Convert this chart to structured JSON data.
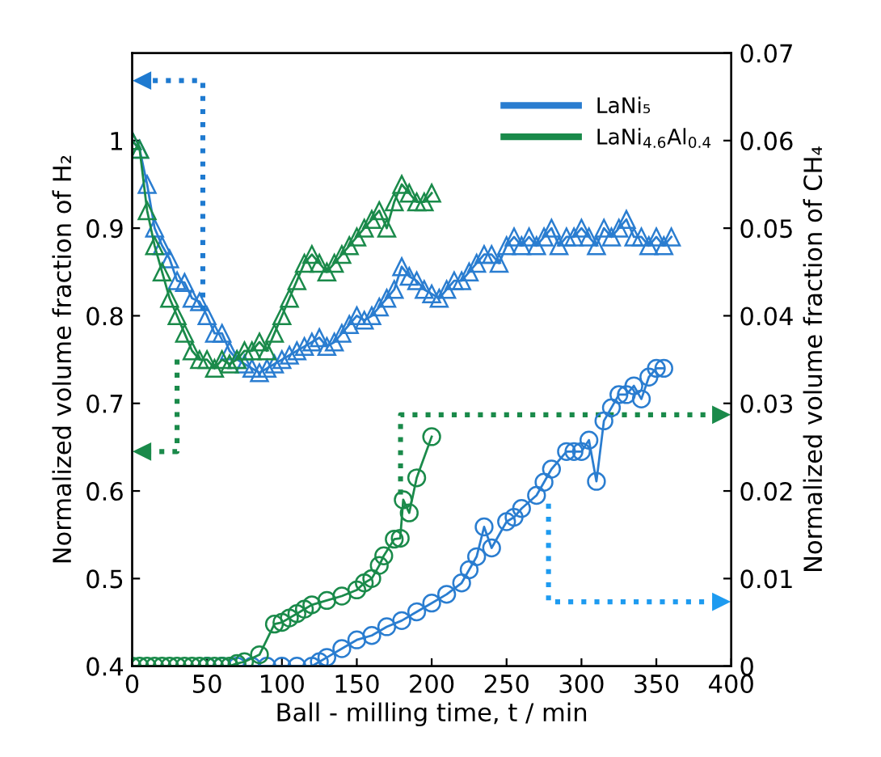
{
  "chart_data": {
    "type": "line",
    "xlabel": "Ball - milling time, t / min",
    "ylabel": "Normalized volume fraction of H₂",
    "y2label": "Normalized volume fraction of CH₄",
    "xlim": [
      0,
      400
    ],
    "xticks": [
      0,
      50,
      100,
      150,
      200,
      250,
      300,
      350,
      400
    ],
    "ylim": [
      0.4,
      1.1
    ],
    "yticks": [
      0.4,
      0.5,
      0.6,
      0.7,
      0.8,
      0.9,
      1
    ],
    "y2lim": [
      0,
      0.07
    ],
    "y2ticks": [
      0,
      0.01,
      0.02,
      0.03,
      0.04,
      0.05,
      0.06,
      0.07
    ],
    "grid": false,
    "legend": "top right",
    "line_style": "solid",
    "series": [
      {
        "name": "LaNi₅",
        "color": "#2a7dd0",
        "marker": "triangle",
        "x": [
          0,
          5,
          10,
          15,
          20,
          25,
          30,
          35,
          40,
          45,
          50,
          55,
          60,
          65,
          70,
          75,
          80,
          85,
          90,
          95,
          100,
          105,
          110,
          115,
          120,
          125,
          130,
          135,
          140,
          145,
          150,
          155,
          160,
          165,
          170,
          175,
          180,
          185,
          190,
          195,
          200,
          205,
          210,
          215,
          220,
          225,
          230,
          235,
          240,
          245,
          250,
          255,
          260,
          265,
          270,
          275,
          280,
          285,
          290,
          295,
          300,
          305,
          310,
          315,
          320,
          325,
          330,
          335,
          340,
          345,
          350,
          355,
          360
        ],
        "values": [
          1.0,
          0.99,
          0.95,
          0.9,
          0.88,
          0.865,
          0.84,
          0.838,
          0.82,
          0.816,
          0.8,
          0.78,
          0.78,
          0.76,
          0.75,
          0.745,
          0.74,
          0.735,
          0.74,
          0.745,
          0.75,
          0.755,
          0.76,
          0.765,
          0.77,
          0.775,
          0.765,
          0.77,
          0.78,
          0.79,
          0.8,
          0.795,
          0.8,
          0.81,
          0.82,
          0.83,
          0.856,
          0.845,
          0.84,
          0.83,
          0.825,
          0.82,
          0.83,
          0.84,
          0.84,
          0.85,
          0.86,
          0.87,
          0.87,
          0.86,
          0.88,
          0.89,
          0.88,
          0.89,
          0.88,
          0.89,
          0.9,
          0.88,
          0.89,
          0.89,
          0.9,
          0.89,
          0.88,
          0.9,
          0.89,
          0.9,
          0.91,
          0.89,
          0.89,
          0.88,
          0.89,
          0.88,
          0.89
        ]
      },
      {
        "name": "LaNi$_{4.6}$Al$_{0.4}$",
        "color": "#1a8a4a",
        "marker": "triangle",
        "x": [
          0,
          5,
          10,
          15,
          20,
          25,
          30,
          35,
          40,
          45,
          50,
          55,
          60,
          65,
          70,
          75,
          80,
          85,
          90,
          95,
          100,
          105,
          110,
          115,
          120,
          125,
          130,
          135,
          140,
          145,
          150,
          155,
          160,
          165,
          170,
          175,
          180,
          185,
          190,
          195,
          200
        ],
        "values": [
          1.0,
          0.99,
          0.92,
          0.88,
          0.85,
          0.82,
          0.8,
          0.78,
          0.76,
          0.75,
          0.75,
          0.74,
          0.75,
          0.745,
          0.75,
          0.76,
          0.76,
          0.77,
          0.76,
          0.78,
          0.8,
          0.82,
          0.84,
          0.86,
          0.87,
          0.86,
          0.85,
          0.86,
          0.87,
          0.88,
          0.89,
          0.9,
          0.91,
          0.92,
          0.9,
          0.93,
          0.95,
          0.94,
          0.93,
          0.93,
          0.94
        ]
      },
      {
        "color": "#2a7dd0",
        "marker": "circle",
        "axis": "y2",
        "x": [
          50,
          60,
          70,
          80,
          90,
          100,
          110,
          120,
          125,
          130,
          140,
          150,
          160,
          170,
          180,
          190,
          200,
          210,
          220,
          225,
          230,
          235,
          240,
          250,
          255,
          260,
          270,
          275,
          280,
          290,
          295,
          300,
          305,
          310,
          315,
          320,
          325,
          330,
          335,
          340,
          345,
          350,
          355
        ],
        "values": [
          0,
          0,
          0,
          0,
          0,
          0,
          0,
          0,
          0.0005,
          0.001,
          0.002,
          0.003,
          0.0035,
          0.0045,
          0.0052,
          0.0062,
          0.0072,
          0.0082,
          0.0095,
          0.011,
          0.0125,
          0.0159,
          0.0135,
          0.0165,
          0.017,
          0.018,
          0.0195,
          0.021,
          0.0225,
          0.0245,
          0.0245,
          0.0245,
          0.0258,
          0.0211,
          0.028,
          0.0295,
          0.031,
          0.031,
          0.032,
          0.0305,
          0.033,
          0.034,
          0.034
        ]
      },
      {
        "color": "#1a8a4a",
        "marker": "circle",
        "axis": "y2",
        "x": [
          0,
          5,
          10,
          15,
          20,
          25,
          30,
          35,
          40,
          45,
          50,
          55,
          60,
          65,
          70,
          75,
          85,
          95,
          100,
          105,
          110,
          115,
          120,
          130,
          140,
          150,
          155,
          160,
          165,
          168,
          175,
          179,
          181,
          185,
          190,
          200
        ],
        "values": [
          0,
          0,
          0,
          0,
          0,
          0,
          0,
          0,
          0,
          0,
          0,
          0,
          0,
          0,
          0.0003,
          0.0005,
          0.0013,
          0.0048,
          0.005,
          0.0055,
          0.006,
          0.0065,
          0.007,
          0.0075,
          0.008,
          0.0087,
          0.0095,
          0.01,
          0.0115,
          0.0126,
          0.0145,
          0.0146,
          0.019,
          0.0175,
          0.0215,
          0.0262
        ]
      }
    ]
  }
}
